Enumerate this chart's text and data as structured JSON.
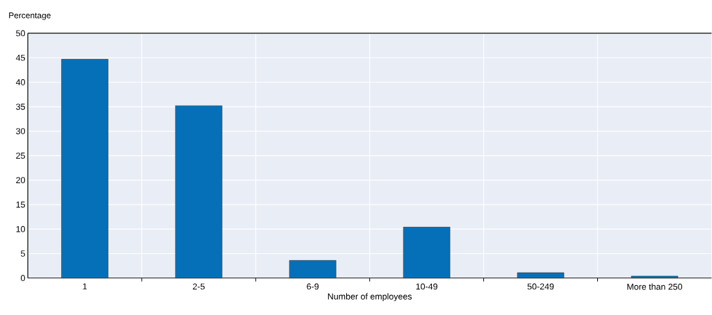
{
  "chart_data": {
    "type": "bar",
    "ylabel": "Percentage",
    "xlabel": "Number of employees",
    "categories": [
      "1",
      "2-5",
      "6-9",
      "10-49",
      "50-249",
      "More than 250"
    ],
    "values": [
      44.7,
      35.2,
      3.6,
      10.4,
      1.1,
      0.4
    ],
    "color": "#0570b8",
    "ylim": [
      0,
      50
    ],
    "yticks": [
      0,
      5,
      10,
      15,
      20,
      25,
      30,
      35,
      40,
      45,
      50
    ],
    "grid": true
  }
}
